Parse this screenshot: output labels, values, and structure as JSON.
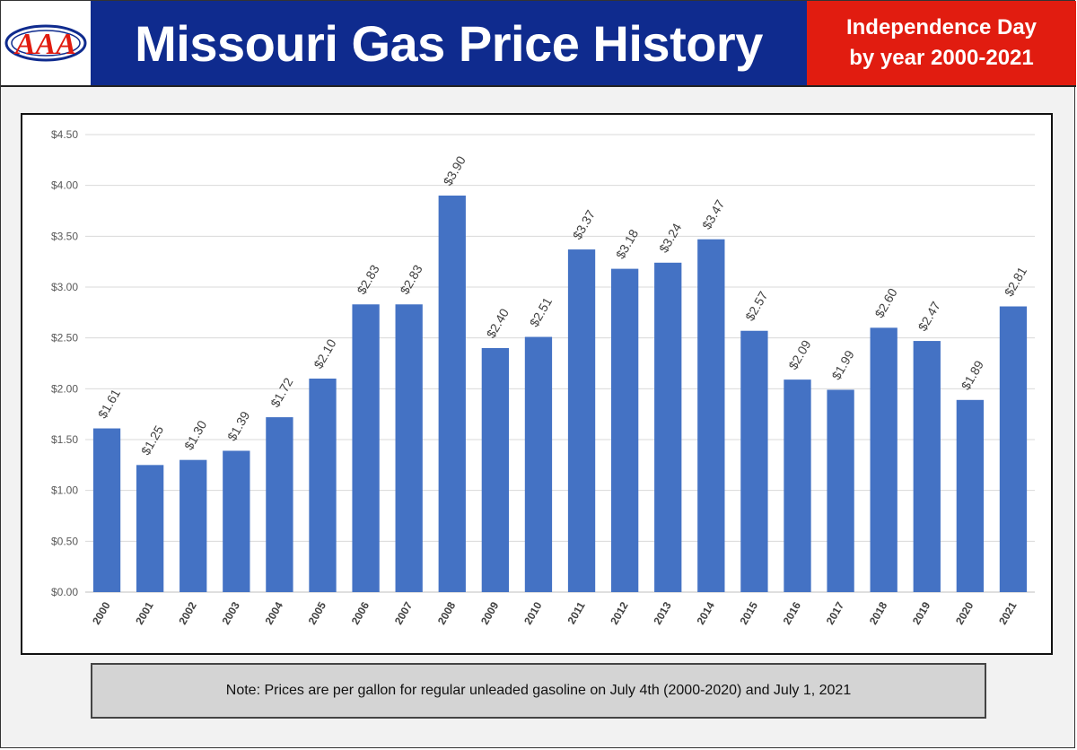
{
  "header": {
    "title": "Missouri Gas Price History",
    "subtitle_line1": "Independence Day",
    "subtitle_line2": "by year 2000-2021",
    "logo_text": "AAA"
  },
  "note": "Note: Prices are per gallon for regular unleaded gasoline on July 4th (2000-2020) and July 1, 2021",
  "colors": {
    "bar": "#4472c4",
    "header_blue": "#0f2b8e",
    "header_red": "#e11c10"
  },
  "chart_data": {
    "type": "bar",
    "categories": [
      "2000",
      "2001",
      "2002",
      "2003",
      "2004",
      "2005",
      "2006",
      "2007",
      "2008",
      "2009",
      "2010",
      "2011",
      "2012",
      "2013",
      "2014",
      "2015",
      "2016",
      "2017",
      "2018",
      "2019",
      "2020",
      "2021"
    ],
    "values": [
      1.61,
      1.25,
      1.3,
      1.39,
      1.72,
      2.1,
      2.83,
      2.83,
      3.9,
      2.4,
      2.51,
      3.37,
      3.18,
      3.24,
      3.47,
      2.57,
      2.09,
      1.99,
      2.6,
      2.47,
      1.89,
      2.81
    ],
    "data_labels": [
      "$1.61",
      "$1.25",
      "$1.30",
      "$1.39",
      "$1.72",
      "$2.10",
      "$2.83",
      "$2.83",
      "$3.90",
      "$2.40",
      "$2.51",
      "$3.37",
      "$3.18",
      "$3.24",
      "$3.47",
      "$2.57",
      "$2.09",
      "$1.99",
      "$2.60",
      "$2.47",
      "$1.89",
      "$2.81"
    ],
    "y_ticks": [
      "$0.00",
      "$0.50",
      "$1.00",
      "$1.50",
      "$2.00",
      "$2.50",
      "$3.00",
      "$3.50",
      "$4.00",
      "$4.50"
    ],
    "ylim": [
      0,
      4.5
    ],
    "grid": true,
    "xlabel": "",
    "ylabel": ""
  }
}
